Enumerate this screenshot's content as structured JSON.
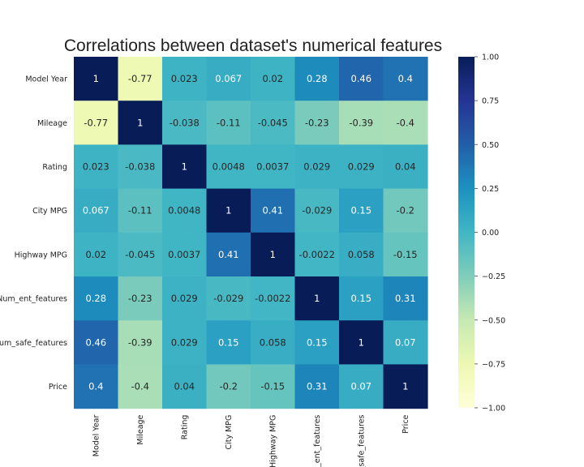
{
  "chart_data": {
    "type": "heatmap",
    "title": "Correlations between dataset's numerical features",
    "row_labels": [
      "Model Year",
      "Mileage",
      "Rating",
      "City MPG",
      "Highway MPG",
      "Num_ent_features",
      "Num_safe_features",
      "Price"
    ],
    "col_labels": [
      "Model Year",
      "Mileage",
      "Rating",
      "City MPG",
      "Highway MPG",
      "Num_ent_features",
      "Num_safe_features",
      "Price"
    ],
    "values": [
      [
        1,
        -0.77,
        0.023,
        0.067,
        0.02,
        0.28,
        0.46,
        0.4
      ],
      [
        -0.77,
        1,
        -0.038,
        -0.11,
        -0.045,
        -0.23,
        -0.39,
        -0.4
      ],
      [
        0.023,
        -0.038,
        1,
        0.0048,
        0.0037,
        0.029,
        0.029,
        0.04
      ],
      [
        0.067,
        -0.11,
        0.0048,
        1,
        0.41,
        -0.029,
        0.15,
        -0.2
      ],
      [
        0.02,
        -0.045,
        0.0037,
        0.41,
        1,
        -0.0022,
        0.058,
        -0.15
      ],
      [
        0.28,
        -0.23,
        0.029,
        -0.029,
        -0.0022,
        1,
        0.15,
        0.31
      ],
      [
        0.46,
        -0.39,
        0.029,
        0.15,
        0.058,
        0.15,
        1,
        0.07
      ],
      [
        0.4,
        -0.4,
        0.04,
        -0.2,
        -0.15,
        0.31,
        0.07,
        1
      ]
    ],
    "cell_labels": [
      [
        "1",
        "-0.77",
        "0.023",
        "0.067",
        "0.02",
        "0.28",
        "0.46",
        "0.4"
      ],
      [
        "-0.77",
        "1",
        "-0.038",
        "-0.11",
        "-0.045",
        "-0.23",
        "-0.39",
        "-0.4"
      ],
      [
        "0.023",
        "-0.038",
        "1",
        "0.0048",
        "0.0037",
        "0.029",
        "0.029",
        "0.04"
      ],
      [
        "0.067",
        "-0.11",
        "0.0048",
        "1",
        "0.41",
        "-0.029",
        "0.15",
        "-0.2"
      ],
      [
        "0.02",
        "-0.045",
        "0.0037",
        "0.41",
        "1",
        "-0.0022",
        "0.058",
        "-0.15"
      ],
      [
        "0.28",
        "-0.23",
        "0.029",
        "-0.029",
        "-0.0022",
        "1",
        "0.15",
        "0.31"
      ],
      [
        "0.46",
        "-0.39",
        "0.029",
        "0.15",
        "0.058",
        "0.15",
        "1",
        "0.07"
      ],
      [
        "0.4",
        "-0.4",
        "0.04",
        "-0.2",
        "-0.15",
        "0.31",
        "0.07",
        "1"
      ]
    ],
    "colormap": "YlGnBu",
    "colormap_stops": [
      "#ffffd9",
      "#edf8b1",
      "#c7e9b4",
      "#7fcdbb",
      "#41b6c4",
      "#1d91c0",
      "#225ea8",
      "#253494",
      "#081d58"
    ],
    "vmin": -1,
    "vmax": 1,
    "colorbar_ticks": [
      1.0,
      0.75,
      0.5,
      0.25,
      0.0,
      -0.25,
      -0.5,
      -0.75,
      -1.0
    ],
    "colorbar_tick_labels": [
      "1.00",
      "0.75",
      "0.50",
      "0.25",
      "0.00",
      "−0.25",
      "−0.50",
      "−0.75",
      "−1.00"
    ],
    "grid": false,
    "legend": "colorbar-right"
  }
}
